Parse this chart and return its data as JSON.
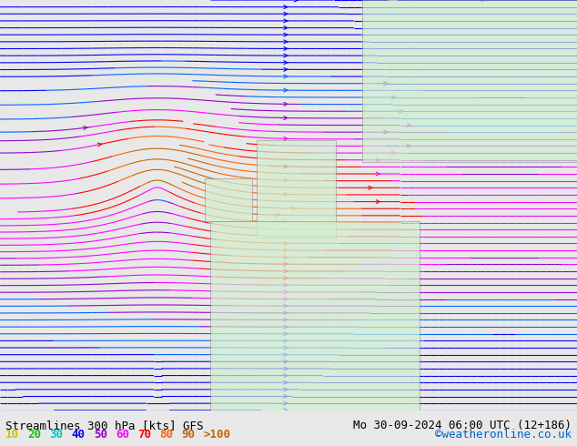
{
  "title_left": "Streamlines 300 hPa [kts] GFS",
  "title_right": "Mo 30-09-2024 06:00 UTC (12+186)",
  "credit": "©weatheronline.co.uk",
  "legend_values": [
    10,
    20,
    30,
    40,
    50,
    60,
    70,
    80,
    90
  ],
  "legend_label_gt": ">100",
  "legend_colors": [
    "#c8c800",
    "#00c800",
    "#00c8c8",
    "#0000ff",
    "#9600c8",
    "#ff00ff",
    "#ff0000",
    "#ff6400",
    "#c86400"
  ],
  "legend_gt_color": "#c86400",
  "background_color": "#e8e8e8",
  "land_color": "#d0efd0",
  "ocean_color": "#e8e8e8",
  "map_bg": "#f0f0f0",
  "title_fontsize": 9,
  "legend_fontsize": 9,
  "figsize": [
    6.34,
    4.9
  ],
  "dpi": 100
}
